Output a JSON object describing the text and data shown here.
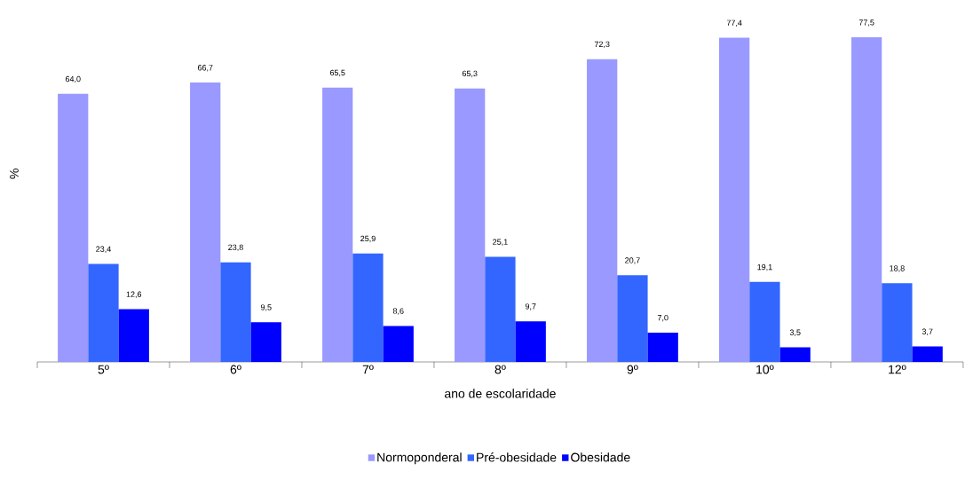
{
  "chart_data": {
    "type": "bar",
    "xlabel": "ano de escolaridade",
    "ylabel": "%",
    "categories": [
      "5º",
      "6º",
      "7º",
      "8º",
      "9º",
      "10º",
      "12º"
    ],
    "series": [
      {
        "name": "Normoponderal",
        "color": "#9999ff",
        "values": [
          64.0,
          66.7,
          65.5,
          65.3,
          72.3,
          77.4,
          77.5
        ],
        "value_labels": [
          "64,0",
          "66,7",
          "65,5",
          "65,3",
          "72,3",
          "77,4",
          "77,5"
        ]
      },
      {
        "name": "Pré-obesidade",
        "color": "#3366ff",
        "values": [
          23.4,
          23.8,
          25.9,
          25.1,
          20.7,
          19.1,
          18.8
        ],
        "value_labels": [
          "23,4",
          "23,8",
          "25,9",
          "25,1",
          "20,7",
          "19,1",
          "18,8"
        ]
      },
      {
        "name": "Obesidade",
        "color": "#0000ff",
        "values": [
          12.6,
          9.5,
          8.6,
          9.7,
          7.0,
          3.5,
          3.7
        ],
        "value_labels": [
          "12,6",
          "9,5",
          "8,6",
          "9,7",
          "7,0",
          "3,5",
          "3,7"
        ]
      }
    ],
    "legend": "bottom"
  }
}
